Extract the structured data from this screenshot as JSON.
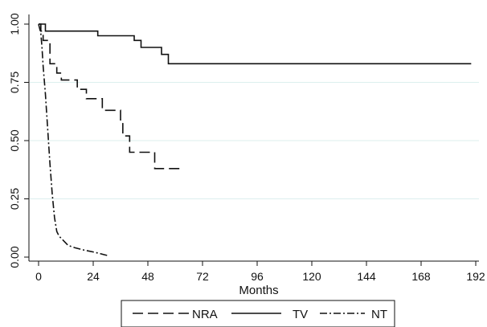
{
  "chart_data": {
    "type": "line",
    "xlabel": "Months",
    "ylabel": "",
    "xlim": [
      0,
      192
    ],
    "ylim": [
      0,
      1
    ],
    "x_ticks": [
      0,
      24,
      48,
      72,
      96,
      120,
      144,
      168,
      192
    ],
    "y_ticks": [
      0.0,
      0.25,
      0.5,
      0.75,
      1.0
    ],
    "y_tick_labels": [
      "0.00",
      "0.25",
      "0.50",
      "0.75",
      "1.00"
    ],
    "grid": "horizontal",
    "legend_position": "bottom",
    "series": [
      {
        "name": "NRA",
        "style": "dashed",
        "points": [
          [
            0,
            1.0
          ],
          [
            1,
            1.0
          ],
          [
            1,
            0.97
          ],
          [
            2,
            0.97
          ],
          [
            2,
            0.93
          ],
          [
            5,
            0.93
          ],
          [
            5,
            0.83
          ],
          [
            8,
            0.83
          ],
          [
            8,
            0.79
          ],
          [
            10,
            0.79
          ],
          [
            10,
            0.76
          ],
          [
            17,
            0.76
          ],
          [
            17,
            0.72
          ],
          [
            21,
            0.72
          ],
          [
            21,
            0.68
          ],
          [
            28,
            0.68
          ],
          [
            28,
            0.63
          ],
          [
            33,
            0.63
          ],
          [
            33,
            0.63
          ],
          [
            36,
            0.63
          ],
          [
            36,
            0.58
          ],
          [
            37,
            0.58
          ],
          [
            37,
            0.52
          ],
          [
            40,
            0.52
          ],
          [
            40,
            0.45
          ],
          [
            48,
            0.45
          ],
          [
            48,
            0.45
          ],
          [
            51,
            0.45
          ],
          [
            51,
            0.38
          ],
          [
            62,
            0.38
          ]
        ]
      },
      {
        "name": "TV",
        "style": "solid",
        "points": [
          [
            0,
            1.0
          ],
          [
            3,
            1.0
          ],
          [
            3,
            0.97
          ],
          [
            26,
            0.97
          ],
          [
            26,
            0.95
          ],
          [
            42,
            0.95
          ],
          [
            42,
            0.93
          ],
          [
            45,
            0.93
          ],
          [
            45,
            0.9
          ],
          [
            54,
            0.9
          ],
          [
            54,
            0.87
          ],
          [
            57,
            0.87
          ],
          [
            57,
            0.83
          ],
          [
            190,
            0.83
          ]
        ]
      },
      {
        "name": "NT",
        "style": "dashdot",
        "points": [
          [
            0,
            1.0
          ],
          [
            1,
            0.96
          ],
          [
            1.5,
            0.9
          ],
          [
            2,
            0.82
          ],
          [
            3,
            0.7
          ],
          [
            4,
            0.55
          ],
          [
            5,
            0.4
          ],
          [
            6,
            0.27
          ],
          [
            7,
            0.17
          ],
          [
            8,
            0.11
          ],
          [
            9,
            0.09
          ],
          [
            11,
            0.07
          ],
          [
            13,
            0.05
          ],
          [
            16,
            0.04
          ],
          [
            20,
            0.03
          ],
          [
            25,
            0.02
          ],
          [
            29,
            0.01
          ],
          [
            31,
            0.005
          ]
        ]
      }
    ]
  }
}
